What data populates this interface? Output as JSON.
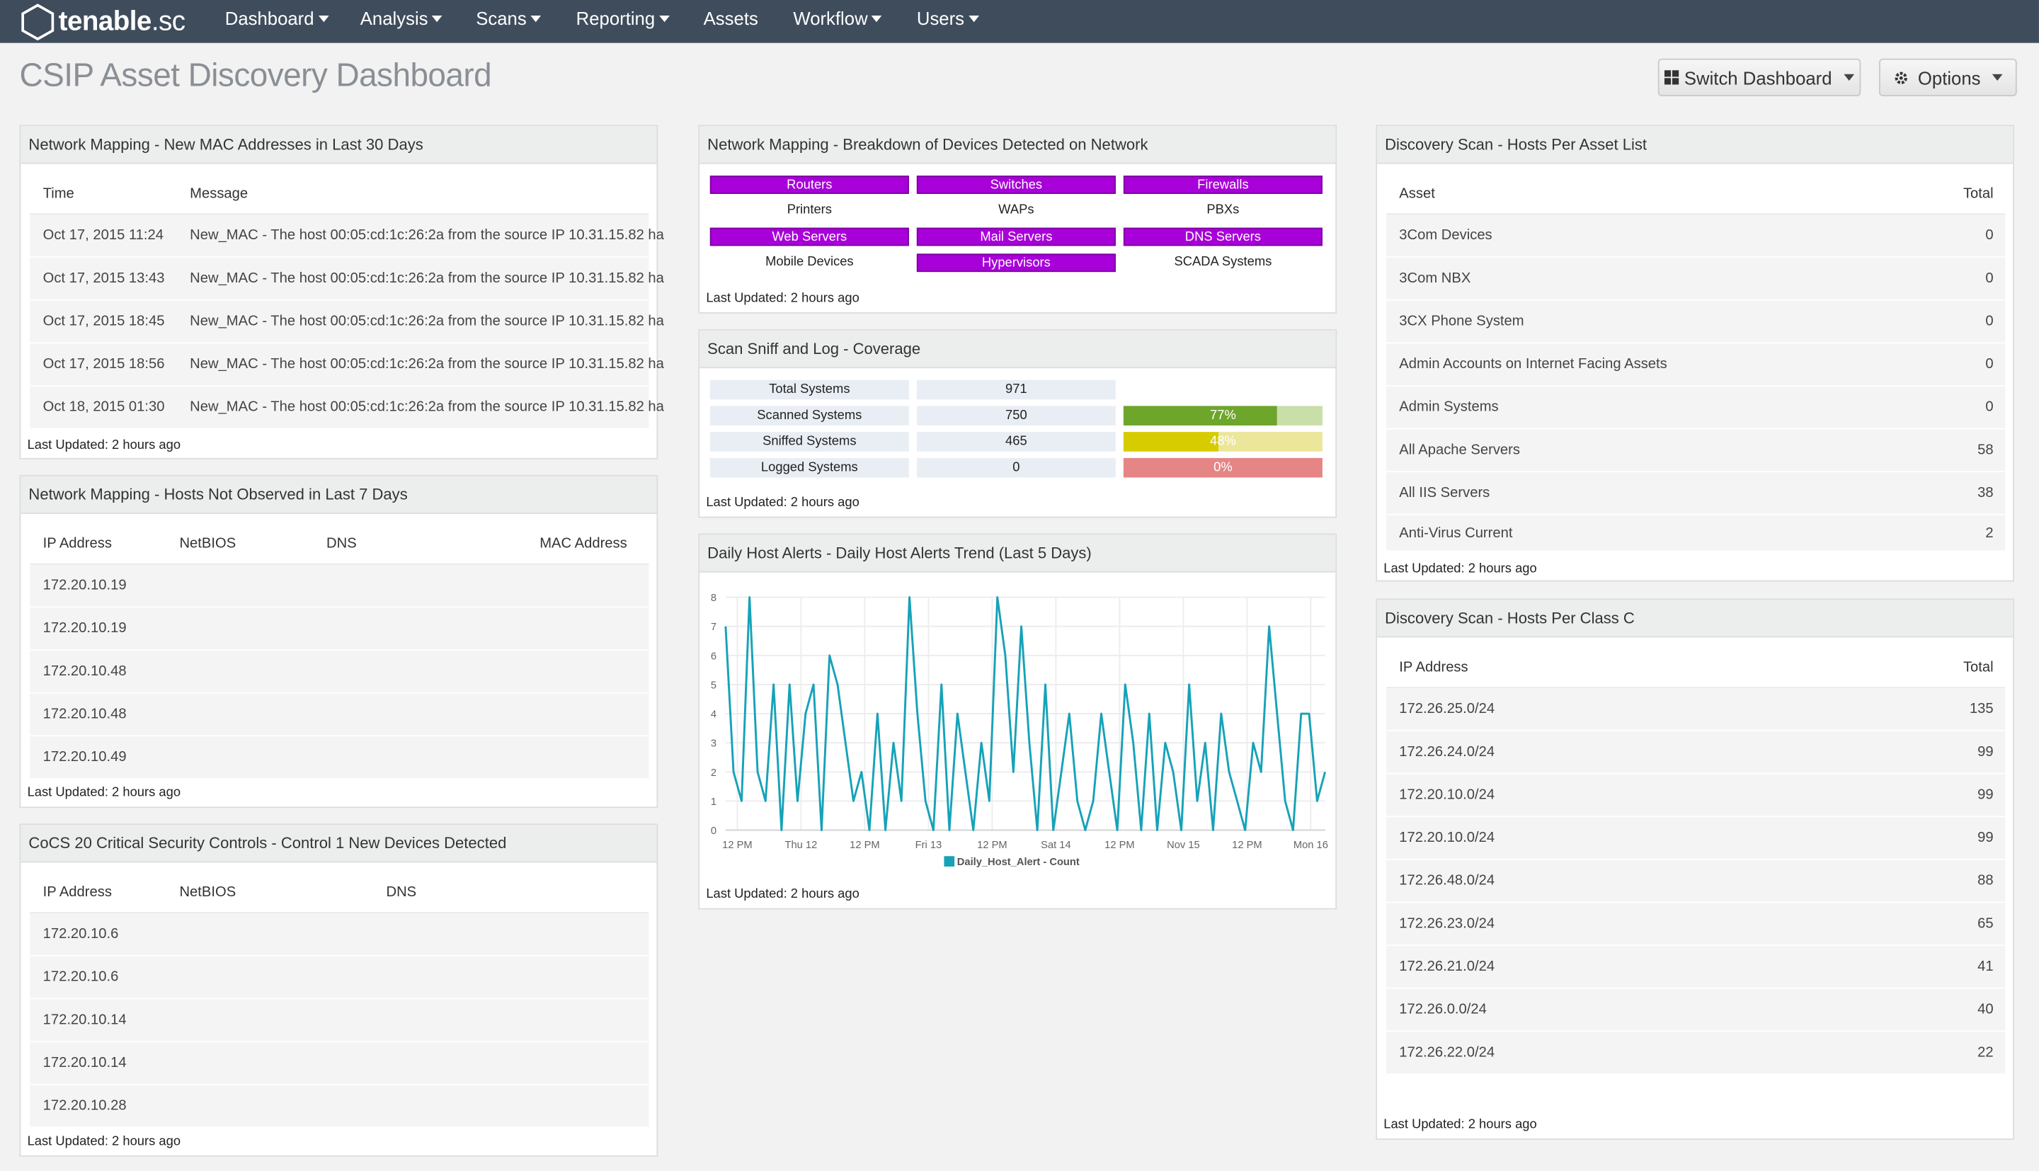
{
  "nav": {
    "logo_text": "tenable",
    "logo_suffix": ".sc",
    "items": [
      {
        "label": "Dashboard",
        "dropdown": true
      },
      {
        "label": "Analysis",
        "dropdown": true
      },
      {
        "label": "Scans",
        "dropdown": true
      },
      {
        "label": "Reporting",
        "dropdown": true
      },
      {
        "label": "Assets",
        "dropdown": false
      },
      {
        "label": "Workflow",
        "dropdown": true
      },
      {
        "label": "Users",
        "dropdown": true
      }
    ]
  },
  "header": {
    "title": "CSIP Asset Discovery Dashboard",
    "switch_label": "Switch Dashboard",
    "options_label": "Options"
  },
  "panels": {
    "mac": {
      "title": "Network Mapping - New MAC Addresses in Last 30 Days",
      "columns": [
        "Time",
        "Message"
      ],
      "rows": [
        [
          "Oct 17, 2015 11:24",
          "New_MAC - The host 00:05:cd:1c:26:2a from the source IP 10.31.15.82 ha"
        ],
        [
          "Oct 17, 2015 13:43",
          "New_MAC - The host 00:05:cd:1c:26:2a from the source IP 10.31.15.82 ha"
        ],
        [
          "Oct 17, 2015 18:45",
          "New_MAC - The host 00:05:cd:1c:26:2a from the source IP 10.31.15.82 ha"
        ],
        [
          "Oct 17, 2015 18:56",
          "New_MAC - The host 00:05:cd:1c:26:2a from the source IP 10.31.15.82 ha"
        ],
        [
          "Oct 18, 2015 01:30",
          "New_MAC - The host 00:05:cd:1c:26:2a from the source IP 10.31.15.82 ha"
        ]
      ],
      "updated": "Last Updated: 2 hours ago"
    },
    "notobs": {
      "title": "Network Mapping - Hosts Not Observed in Last 7 Days",
      "columns": [
        "IP Address",
        "NetBIOS",
        "DNS",
        "MAC Address"
      ],
      "rows": [
        [
          "172.20.10.19"
        ],
        [
          "172.20.10.19"
        ],
        [
          "172.20.10.48"
        ],
        [
          "172.20.10.48"
        ],
        [
          "172.20.10.49"
        ]
      ],
      "updated": "Last Updated: 2 hours ago"
    },
    "cocs": {
      "title": "CoCS 20 Critical Security Controls - Control 1 New Devices Detected",
      "columns": [
        "IP Address",
        "NetBIOS",
        "DNS"
      ],
      "rows": [
        [
          "172.20.10.6"
        ],
        [
          "172.20.10.6"
        ],
        [
          "172.20.10.14"
        ],
        [
          "172.20.10.14"
        ],
        [
          "172.20.10.28"
        ]
      ],
      "updated": "Last Updated: 2 hours ago"
    },
    "breakdown": {
      "title": "Network Mapping - Breakdown of Devices Detected on Network",
      "cells": [
        {
          "label": "Routers",
          "on": true
        },
        {
          "label": "Switches",
          "on": true
        },
        {
          "label": "Firewalls",
          "on": true
        },
        {
          "label": "Printers",
          "on": false
        },
        {
          "label": "WAPs",
          "on": false
        },
        {
          "label": "PBXs",
          "on": false
        },
        {
          "label": "Web Servers",
          "on": true
        },
        {
          "label": "Mail Servers",
          "on": true
        },
        {
          "label": "DNS Servers",
          "on": true
        },
        {
          "label": "Mobile Devices",
          "on": false
        },
        {
          "label": "Hypervisors",
          "on": true
        },
        {
          "label": "SCADA Systems",
          "on": false
        }
      ],
      "updated": "Last Updated: 2 hours ago"
    },
    "coverage": {
      "title": "Scan Sniff and Log - Coverage",
      "rows": [
        {
          "label": "Total Systems",
          "value": "971",
          "percent": null,
          "pct_text": ""
        },
        {
          "label": "Scanned Systems",
          "value": "750",
          "percent": 77,
          "pct_text": "77%",
          "color": "#6ea52b",
          "bg": "#c9dea8"
        },
        {
          "label": "Sniffed Systems",
          "value": "465",
          "percent": 48,
          "pct_text": "48%",
          "color": "#d6cc00",
          "bg": "#ece69a"
        },
        {
          "label": "Logged Systems",
          "value": "0",
          "percent": 0,
          "pct_text": "0%",
          "color": "#e05757",
          "bg": "#e58585"
        }
      ],
      "updated": "Last Updated: 2 hours ago"
    },
    "alerts": {
      "title": "Daily Host Alerts - Daily Host Alerts Trend (Last 5 Days)",
      "updated": "Last Updated: 2 hours ago"
    },
    "assetlist": {
      "title": "Discovery Scan - Hosts Per Asset List",
      "columns": [
        "Asset",
        "Total"
      ],
      "rows": [
        [
          "3Com Devices",
          "0"
        ],
        [
          "3Com NBX",
          "0"
        ],
        [
          "3CX Phone System",
          "0"
        ],
        [
          "Admin Accounts on Internet Facing Assets",
          "0"
        ],
        [
          "Admin Systems",
          "0"
        ],
        [
          "All Apache Servers",
          "58"
        ],
        [
          "All IIS Servers",
          "38"
        ],
        [
          "Anti-Virus Current",
          "2"
        ]
      ],
      "updated": "Last Updated: 2 hours ago"
    },
    "classc": {
      "title": "Discovery Scan - Hosts Per Class C",
      "columns": [
        "IP Address",
        "Total"
      ],
      "rows": [
        [
          "172.26.25.0/24",
          "135"
        ],
        [
          "172.26.24.0/24",
          "99"
        ],
        [
          "172.20.10.0/24",
          "99"
        ],
        [
          "172.20.10.0/24",
          "99"
        ],
        [
          "172.26.48.0/24",
          "88"
        ],
        [
          "172.26.23.0/24",
          "65"
        ],
        [
          "172.26.21.0/24",
          "41"
        ],
        [
          "172.26.0.0/24",
          "40"
        ],
        [
          "172.26.22.0/24",
          "22"
        ]
      ],
      "updated": "Last Updated: 2 hours ago"
    }
  },
  "chart_data": {
    "type": "line",
    "title": "Daily Host Alerts - Daily Host Alerts Trend (Last 5 Days)",
    "series": [
      {
        "name": "Daily_Host_Alert - Count",
        "color": "#17a2b8",
        "values": [
          7,
          2,
          1,
          8,
          2,
          1,
          5,
          0,
          5,
          1,
          4,
          5,
          0,
          6,
          5,
          3,
          1,
          2,
          0,
          4,
          0,
          3,
          1,
          8,
          4,
          1,
          0,
          5,
          0,
          4,
          2,
          0,
          3,
          1,
          8,
          6,
          2,
          7,
          3,
          0,
          5,
          0,
          2,
          4,
          1,
          0,
          1,
          4,
          2,
          0,
          5,
          3,
          0,
          4,
          0,
          3,
          2,
          0,
          5,
          1,
          3,
          0,
          4,
          2,
          1,
          0,
          3,
          2,
          7,
          4,
          1,
          0,
          4,
          4,
          1,
          2
        ]
      }
    ],
    "x_tick_labels": [
      "12 PM",
      "Thu 12",
      "12 PM",
      "Fri 13",
      "12 PM",
      "Sat 14",
      "12 PM",
      "Nov 15",
      "12 PM",
      "Mon 16"
    ],
    "y_tick_labels": [
      "0",
      "1",
      "2",
      "3",
      "4",
      "5",
      "6",
      "7",
      "8"
    ],
    "ylim": [
      0,
      8
    ],
    "legend": "bottom"
  }
}
